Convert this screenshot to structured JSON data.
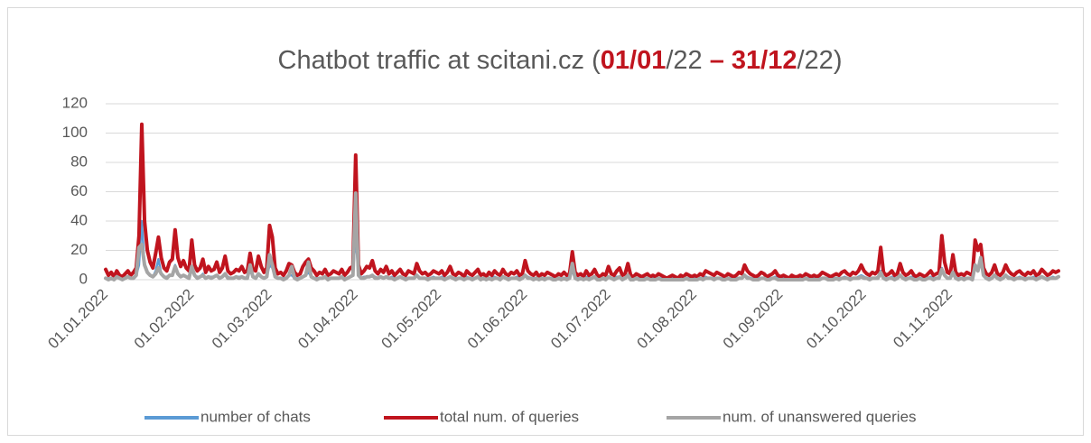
{
  "chart_data": {
    "type": "line",
    "title_parts": [
      "Chatbot traffic at scitani.cz (",
      "01/01",
      "/22 ",
      "– 31/12",
      "/22)"
    ],
    "categories": [
      "01.01.2022",
      null,
      null,
      null,
      null,
      null,
      null,
      null,
      null,
      null,
      null,
      null,
      null,
      null,
      null,
      null,
      null,
      null,
      null,
      null,
      null,
      null,
      null,
      null,
      null,
      null,
      null,
      null,
      null,
      null,
      null,
      "01.02.2022",
      null,
      null,
      null,
      null,
      null,
      null,
      null,
      null,
      null,
      null,
      null,
      null,
      null,
      null,
      null,
      null,
      null,
      null,
      null,
      null,
      null,
      null,
      null,
      null,
      null,
      null,
      null,
      "01.03.2022",
      null,
      null,
      null,
      null,
      null,
      null,
      null,
      null,
      null,
      null,
      null,
      null,
      null,
      null,
      null,
      null,
      null,
      null,
      null,
      null,
      null,
      null,
      null,
      null,
      null,
      null,
      null,
      null,
      null,
      null,
      "01.04.2022",
      null,
      null,
      null,
      null,
      null,
      null,
      null,
      null,
      null,
      null,
      null,
      null,
      null,
      null,
      null,
      null,
      null,
      null,
      null,
      null,
      null,
      null,
      null,
      null,
      null,
      null,
      null,
      null,
      null,
      "01.05.2022",
      null,
      null,
      null,
      null,
      null,
      null,
      null,
      null,
      null,
      null,
      null,
      null,
      null,
      null,
      null,
      null,
      null,
      null,
      null,
      null,
      null,
      null,
      null,
      null,
      null,
      null,
      null,
      null,
      null,
      null,
      "01.06.2022",
      null,
      null,
      null,
      null,
      null,
      null,
      null,
      null,
      null,
      null,
      null,
      null,
      null,
      null,
      null,
      null,
      null,
      null,
      null,
      null,
      null,
      null,
      null,
      null,
      null,
      null,
      null,
      null,
      null,
      "01.07.2022",
      null,
      null,
      null,
      null,
      null,
      null,
      null,
      null,
      null,
      null,
      null,
      null,
      null,
      null,
      null,
      null,
      null,
      null,
      null,
      null,
      null,
      null,
      null,
      null,
      null,
      null,
      null,
      null,
      null,
      null,
      "01.08.2022",
      null,
      null,
      null,
      null,
      null,
      null,
      null,
      null,
      null,
      null,
      null,
      null,
      null,
      null,
      null,
      null,
      null,
      null,
      null,
      null,
      null,
      null,
      null,
      null,
      null,
      null,
      null,
      null,
      null,
      null,
      "01.09.2022",
      null,
      null,
      null,
      null,
      null,
      null,
      null,
      null,
      null,
      null,
      null,
      null,
      null,
      null,
      null,
      null,
      null,
      null,
      null,
      null,
      null,
      null,
      null,
      null,
      null,
      null,
      null,
      null,
      null,
      "01.10.2022",
      null,
      null,
      null,
      null,
      null,
      null,
      null,
      null,
      null,
      null,
      null,
      null,
      null,
      null,
      null,
      null,
      null,
      null,
      null,
      null,
      null,
      null,
      null,
      null,
      null,
      null,
      null,
      null,
      null,
      null,
      "01.11.2022",
      null,
      null,
      null,
      null,
      null,
      null,
      null,
      null,
      null,
      null,
      null,
      null,
      null,
      null,
      null,
      null,
      null,
      null,
      null,
      null,
      null,
      null,
      null,
      null,
      null,
      null,
      null,
      null,
      null,
      null,
      null,
      null,
      null,
      null,
      null,
      null,
      null,
      null,
      null
    ],
    "series": [
      {
        "name": "number of chats",
        "color": "#5b9bd5",
        "values": [
          1,
          1,
          1,
          1,
          2,
          1,
          1,
          1,
          2,
          1,
          1,
          3,
          10,
          40,
          9,
          5,
          3,
          2,
          6,
          14,
          4,
          2,
          2,
          3,
          3,
          10,
          4,
          2,
          3,
          2,
          2,
          8,
          3,
          2,
          2,
          4,
          1,
          2,
          2,
          2,
          3,
          1,
          2,
          4,
          2,
          1,
          1,
          2,
          2,
          2,
          1,
          2,
          6,
          2,
          1,
          4,
          2,
          1,
          2,
          10,
          8,
          2,
          1,
          1,
          1,
          1,
          3,
          3,
          1,
          1,
          1,
          2,
          3,
          5,
          2,
          1,
          1,
          1,
          1,
          2,
          1,
          1,
          1,
          1,
          1,
          2,
          1,
          1,
          2,
          3,
          30,
          3,
          1,
          2,
          2,
          2,
          3,
          2,
          1,
          2,
          1,
          2,
          1,
          2,
          1,
          1,
          2,
          1,
          1,
          1,
          1,
          1,
          3,
          1,
          1,
          1,
          1,
          1,
          2,
          1,
          1,
          2,
          1,
          1,
          2,
          1,
          1,
          1,
          1,
          1,
          2,
          1,
          1,
          1,
          2,
          1,
          1,
          1,
          1,
          1,
          2,
          1,
          1,
          2,
          1,
          1,
          1,
          1,
          2,
          1,
          1,
          3,
          2,
          1,
          1,
          1,
          1,
          1,
          1,
          1,
          1,
          1,
          1,
          1,
          1,
          1,
          1,
          1,
          6,
          1,
          1,
          1,
          1,
          2,
          1,
          1,
          2,
          1,
          1,
          1,
          1,
          2,
          1,
          1,
          2,
          2,
          1,
          1,
          3,
          1,
          1,
          1,
          1,
          1,
          1,
          1,
          1,
          1,
          1,
          1,
          1,
          1,
          0,
          1,
          1,
          1,
          0,
          1,
          1,
          1,
          1,
          1,
          1,
          1,
          1,
          1,
          2,
          1,
          1,
          1,
          1,
          1,
          1,
          1,
          1,
          1,
          1,
          1,
          1,
          1,
          3,
          2,
          1,
          1,
          1,
          1,
          1,
          1,
          1,
          1,
          1,
          2,
          1,
          1,
          1,
          1,
          0,
          1,
          1,
          1,
          1,
          1,
          1,
          1,
          1,
          1,
          1,
          1,
          1,
          1,
          1,
          1,
          1,
          1,
          1,
          1,
          2,
          1,
          1,
          1,
          1,
          2,
          3,
          2,
          1,
          1,
          1,
          1,
          2,
          6,
          1,
          1,
          1,
          2,
          1,
          1,
          3,
          1,
          1,
          1,
          2,
          1,
          1,
          1,
          1,
          1,
          1,
          2,
          1,
          1,
          1,
          8,
          3,
          1,
          1,
          5,
          1,
          1,
          1,
          1,
          1,
          1,
          1,
          8,
          6,
          12,
          3,
          1,
          1,
          1,
          3,
          1,
          1,
          1,
          3,
          2,
          1,
          1,
          1,
          2,
          1,
          1,
          1,
          1,
          2,
          1,
          1,
          2,
          1,
          1,
          1,
          2,
          1,
          2
        ]
      },
      {
        "name": "total num. of queries",
        "color": "#c0141e",
        "values": [
          7,
          3,
          5,
          2,
          6,
          3,
          2,
          4,
          6,
          3,
          5,
          8,
          30,
          106,
          40,
          20,
          12,
          8,
          18,
          29,
          15,
          8,
          6,
          12,
          14,
          34,
          15,
          9,
          13,
          8,
          6,
          27,
          10,
          6,
          8,
          14,
          5,
          9,
          6,
          7,
          12,
          5,
          8,
          16,
          6,
          4,
          5,
          7,
          6,
          9,
          5,
          6,
          18,
          7,
          6,
          16,
          9,
          5,
          8,
          37,
          29,
          8,
          4,
          5,
          3,
          6,
          11,
          10,
          5,
          3,
          4,
          9,
          12,
          14,
          8,
          6,
          3,
          5,
          4,
          7,
          3,
          4,
          6,
          5,
          4,
          7,
          3,
          5,
          8,
          9,
          85,
          10,
          4,
          6,
          9,
          8,
          13,
          6,
          4,
          7,
          5,
          9,
          4,
          6,
          3,
          5,
          7,
          4,
          3,
          6,
          5,
          4,
          11,
          6,
          4,
          5,
          3,
          4,
          6,
          5,
          4,
          6,
          3,
          5,
          9,
          4,
          3,
          5,
          4,
          2,
          6,
          4,
          3,
          5,
          7,
          3,
          4,
          2,
          5,
          3,
          6,
          4,
          3,
          7,
          4,
          3,
          5,
          4,
          6,
          3,
          4,
          13,
          6,
          4,
          3,
          5,
          2,
          4,
          3,
          5,
          4,
          3,
          2,
          4,
          3,
          5,
          3,
          4,
          19,
          5,
          3,
          4,
          2,
          6,
          3,
          4,
          7,
          3,
          2,
          4,
          3,
          9,
          4,
          3,
          6,
          8,
          3,
          4,
          11,
          3,
          2,
          4,
          3,
          2,
          3,
          4,
          2,
          3,
          2,
          4,
          3,
          2,
          1,
          2,
          3,
          2,
          1,
          3,
          2,
          4,
          3,
          2,
          3,
          2,
          4,
          3,
          6,
          5,
          4,
          3,
          5,
          4,
          3,
          2,
          4,
          3,
          2,
          3,
          5,
          4,
          10,
          6,
          4,
          3,
          2,
          3,
          5,
          4,
          2,
          3,
          4,
          6,
          3,
          2,
          3,
          2,
          1,
          3,
          2,
          2,
          3,
          2,
          4,
          3,
          2,
          3,
          2,
          3,
          5,
          4,
          3,
          2,
          3,
          4,
          3,
          5,
          6,
          4,
          3,
          5,
          4,
          6,
          10,
          6,
          4,
          3,
          5,
          4,
          6,
          22,
          5,
          3,
          4,
          6,
          3,
          4,
          11,
          5,
          3,
          4,
          6,
          3,
          2,
          4,
          3,
          2,
          4,
          6,
          3,
          4,
          5,
          30,
          12,
          5,
          4,
          17,
          5,
          3,
          4,
          3,
          5,
          4,
          3,
          27,
          20,
          24,
          8,
          4,
          3,
          5,
          10,
          4,
          3,
          5,
          10,
          6,
          4,
          3,
          5,
          6,
          4,
          3,
          5,
          4,
          6,
          3,
          4,
          7,
          5,
          3,
          4,
          6,
          5,
          6
        ]
      },
      {
        "name": "num. of unanswered queries",
        "color": "#a5a5a5",
        "values": [
          1,
          0,
          1,
          0,
          2,
          1,
          0,
          1,
          2,
          1,
          1,
          3,
          22,
          24,
          10,
          5,
          3,
          2,
          4,
          8,
          4,
          2,
          1,
          3,
          3,
          9,
          4,
          2,
          3,
          2,
          1,
          9,
          3,
          1,
          2,
          3,
          1,
          2,
          1,
          2,
          3,
          1,
          2,
          4,
          1,
          1,
          1,
          2,
          1,
          2,
          1,
          1,
          10,
          2,
          1,
          4,
          2,
          1,
          2,
          17,
          10,
          2,
          1,
          1,
          0,
          1,
          3,
          9,
          1,
          0,
          1,
          2,
          3,
          12,
          2,
          1,
          0,
          1,
          1,
          2,
          0,
          1,
          1,
          1,
          1,
          2,
          0,
          1,
          2,
          3,
          59,
          3,
          1,
          1,
          2,
          2,
          3,
          1,
          1,
          2,
          1,
          2,
          1,
          1,
          0,
          1,
          2,
          1,
          0,
          1,
          1,
          1,
          3,
          1,
          1,
          1,
          0,
          1,
          1,
          1,
          1,
          1,
          0,
          1,
          2,
          1,
          0,
          1,
          1,
          0,
          1,
          1,
          0,
          1,
          2,
          0,
          1,
          0,
          1,
          0,
          1,
          1,
          0,
          2,
          1,
          0,
          1,
          1,
          1,
          0,
          1,
          3,
          1,
          1,
          0,
          1,
          0,
          1,
          0,
          1,
          1,
          0,
          0,
          1,
          0,
          1,
          0,
          1,
          11,
          1,
          0,
          1,
          0,
          1,
          0,
          1,
          2,
          0,
          0,
          1,
          0,
          2,
          1,
          0,
          1,
          2,
          0,
          1,
          3,
          0,
          0,
          1,
          0,
          0,
          0,
          1,
          0,
          0,
          0,
          1,
          0,
          0,
          0,
          0,
          0,
          0,
          0,
          0,
          0,
          1,
          0,
          0,
          0,
          0,
          1,
          0,
          1,
          1,
          1,
          0,
          1,
          1,
          0,
          0,
          1,
          0,
          0,
          0,
          1,
          1,
          3,
          1,
          1,
          0,
          0,
          0,
          1,
          1,
          0,
          0,
          1,
          1,
          0,
          0,
          0,
          0,
          0,
          0,
          0,
          0,
          0,
          0,
          1,
          0,
          0,
          0,
          0,
          0,
          1,
          1,
          0,
          0,
          0,
          1,
          0,
          1,
          1,
          1,
          0,
          1,
          1,
          1,
          2,
          1,
          1,
          0,
          1,
          1,
          1,
          5,
          1,
          0,
          1,
          1,
          0,
          1,
          3,
          1,
          0,
          1,
          1,
          0,
          0,
          1,
          0,
          0,
          1,
          1,
          0,
          1,
          1,
          7,
          3,
          1,
          1,
          5,
          1,
          0,
          1,
          0,
          1,
          1,
          0,
          10,
          6,
          15,
          3,
          1,
          0,
          1,
          3,
          1,
          0,
          1,
          3,
          1,
          1,
          0,
          1,
          1,
          1,
          0,
          1,
          1,
          1,
          0,
          1,
          2,
          1,
          0,
          1,
          1,
          1,
          2
        ]
      }
    ],
    "ylim": [
      0,
      120
    ],
    "yticks": [
      0,
      20,
      40,
      60,
      80,
      100,
      120
    ],
    "grid": true,
    "legend": "bottom"
  }
}
